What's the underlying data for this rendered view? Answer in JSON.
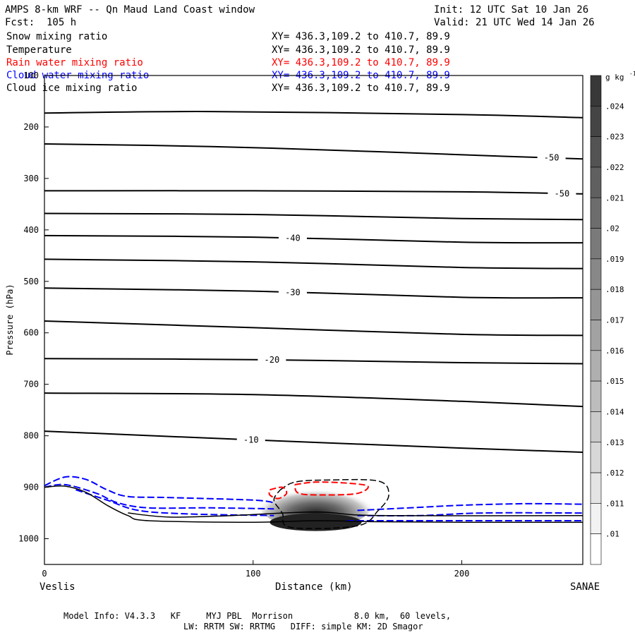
{
  "header": {
    "title": "AMPS 8-km WRF -- Qn Maud Land Coast window",
    "init": "Init: 12 UTC Sat 10 Jan 26",
    "forecast": "Fcst:  105 h",
    "valid": "Valid: 21 UTC Wed 14 Jan 26"
  },
  "legend": [
    {
      "label": "Snow mixing ratio",
      "xy": "XY= 436.3,109.2 to 410.7, 89.9",
      "color": "#000000"
    },
    {
      "label": "Temperature",
      "xy": "XY= 436.3,109.2 to 410.7, 89.9",
      "color": "#000000"
    },
    {
      "label": "Rain water mixing ratio",
      "xy": "XY= 436.3,109.2 to 410.7, 89.9",
      "color": "#ff0000"
    },
    {
      "label": "Cloud water mixing ratio",
      "xy": "XY= 436.3,109.2 to 410.7, 89.9",
      "color": "#0000ff"
    },
    {
      "label": "Cloud ice mixing ratio",
      "xy": "XY= 436.3,109.2 to 410.7, 89.9",
      "color": "#000000"
    }
  ],
  "footer": {
    "line1": "Model Info: V4.3.3   KF     MYJ PBL  Morrison            8.0 km,  60 levels,",
    "line2": "LW: RRTM SW: RRTMG   DIFF: simple KM: 2D Smagor"
  },
  "chart_data": {
    "type": "contour",
    "xlabel": "Distance (km)",
    "ylabel": "Pressure (hPa)",
    "xlim": [
      0,
      258
    ],
    "ylim": [
      1050,
      100
    ],
    "x_ticks": [
      0,
      100,
      200
    ],
    "y_ticks": [
      100,
      200,
      300,
      400,
      500,
      600,
      700,
      800,
      900,
      1000
    ],
    "x_endpoint_labels": {
      "left": "Veslis",
      "right": "SANAE"
    },
    "colorbar": {
      "unit": "g kg",
      "unit_exponent": "-1",
      "labels": [
        ".024",
        ".023",
        ".022",
        ".021",
        ".02",
        ".019",
        ".018",
        ".017",
        ".016",
        ".015",
        ".014",
        ".013",
        ".012",
        ".011",
        ".01"
      ]
    },
    "temperature_contours": [
      {
        "points": [
          [
            0,
            173
          ],
          [
            80,
            170
          ],
          [
            200,
            176
          ],
          [
            258,
            182
          ]
        ]
      },
      {
        "points": [
          [
            0,
            233
          ],
          [
            80,
            238
          ],
          [
            160,
            248
          ],
          [
            220,
            257
          ],
          [
            258,
            262
          ]
        ],
        "label": "-50",
        "label_x": 243
      },
      {
        "points": [
          [
            0,
            324
          ],
          [
            100,
            324
          ],
          [
            200,
            326
          ],
          [
            258,
            330
          ]
        ],
        "label": "-50",
        "label_x": 248
      },
      {
        "points": [
          [
            0,
            368
          ],
          [
            100,
            370
          ],
          [
            200,
            378
          ],
          [
            258,
            380
          ]
        ]
      },
      {
        "points": [
          [
            0,
            411
          ],
          [
            100,
            414
          ],
          [
            200,
            424
          ],
          [
            258,
            425
          ]
        ],
        "label": "-40",
        "label_x": 119
      },
      {
        "points": [
          [
            0,
            457
          ],
          [
            100,
            462
          ],
          [
            200,
            473
          ],
          [
            258,
            475
          ]
        ]
      },
      {
        "points": [
          [
            0,
            513
          ],
          [
            100,
            519
          ],
          [
            200,
            531
          ],
          [
            258,
            532
          ]
        ],
        "label": "-30",
        "label_x": 119
      },
      {
        "points": [
          [
            0,
            577
          ],
          [
            100,
            590
          ],
          [
            200,
            603
          ],
          [
            258,
            605
          ]
        ]
      },
      {
        "points": [
          [
            0,
            650
          ],
          [
            100,
            652
          ],
          [
            200,
            658
          ],
          [
            258,
            660
          ]
        ],
        "label": "-20",
        "label_x": 109
      },
      {
        "points": [
          [
            0,
            717
          ],
          [
            100,
            720
          ],
          [
            200,
            733
          ],
          [
            258,
            743
          ]
        ]
      },
      {
        "points": [
          [
            0,
            791
          ],
          [
            100,
            808
          ],
          [
            200,
            824
          ],
          [
            258,
            832
          ]
        ],
        "label": "-10",
        "label_x": 99
      }
    ],
    "terrain": [
      [
        0,
        900
      ],
      [
        10,
        898
      ],
      [
        20,
        910
      ],
      [
        30,
        935
      ],
      [
        40,
        955
      ],
      [
        50,
        965
      ],
      [
        100,
        968
      ],
      [
        130,
        965
      ],
      [
        160,
        967
      ],
      [
        200,
        968
      ],
      [
        258,
        968
      ]
    ]
  }
}
